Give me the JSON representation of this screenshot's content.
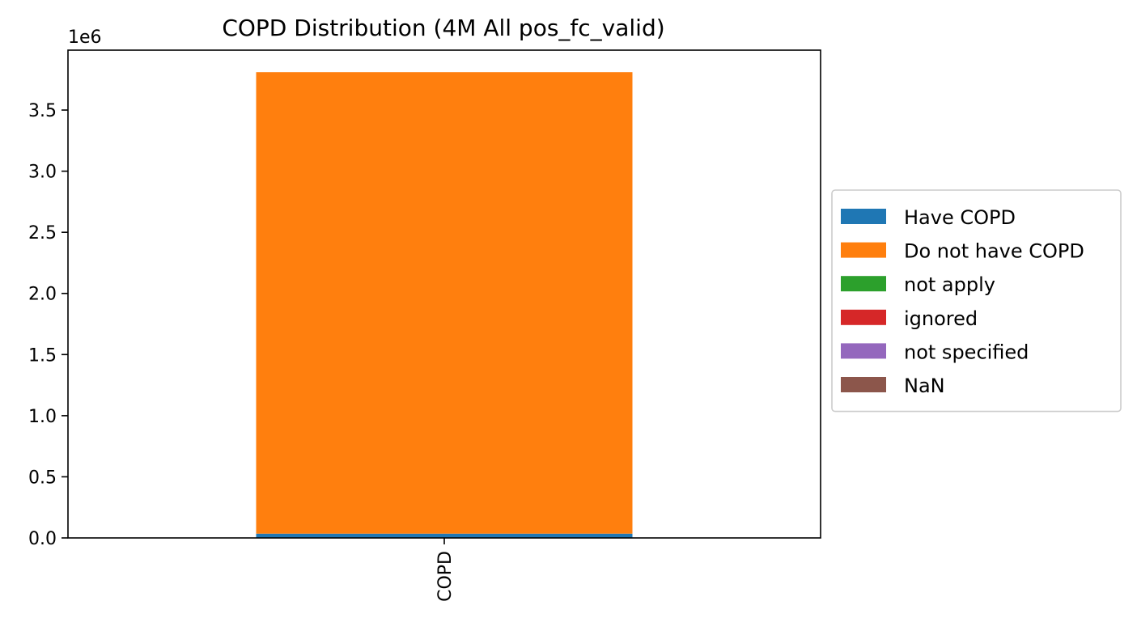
{
  "chart_data": {
    "type": "bar",
    "stacked": true,
    "title": "COPD Distribution (4M All pos_fc_valid)",
    "xlabel": "",
    "ylabel": "",
    "categories": [
      "COPD"
    ],
    "x_tick_rotation": "vertical",
    "y_offset_label": "1e6",
    "y_scale_factor": 1000000,
    "ylim": [
      0,
      3.99
    ],
    "y_ticks": [
      0.0,
      0.5,
      1.0,
      1.5,
      2.0,
      2.5,
      3.0,
      3.5
    ],
    "y_tick_labels": [
      "0.0",
      "0.5",
      "1.0",
      "1.5",
      "2.0",
      "2.5",
      "3.0",
      "3.5"
    ],
    "grid": false,
    "legend_position": "outside-right",
    "series": [
      {
        "name": "Have COPD",
        "values": [
          0.035
        ],
        "color": "#1f77b4"
      },
      {
        "name": "Do not have COPD",
        "values": [
          3.775
        ],
        "color": "#ff7f0e"
      },
      {
        "name": "not apply",
        "values": [
          0
        ],
        "color": "#2ca02c"
      },
      {
        "name": "ignored",
        "values": [
          0
        ],
        "color": "#d62728"
      },
      {
        "name": "not specified",
        "values": [
          0
        ],
        "color": "#9467bd"
      },
      {
        "name": "NaN",
        "values": [
          0
        ],
        "color": "#8c564b"
      }
    ]
  }
}
